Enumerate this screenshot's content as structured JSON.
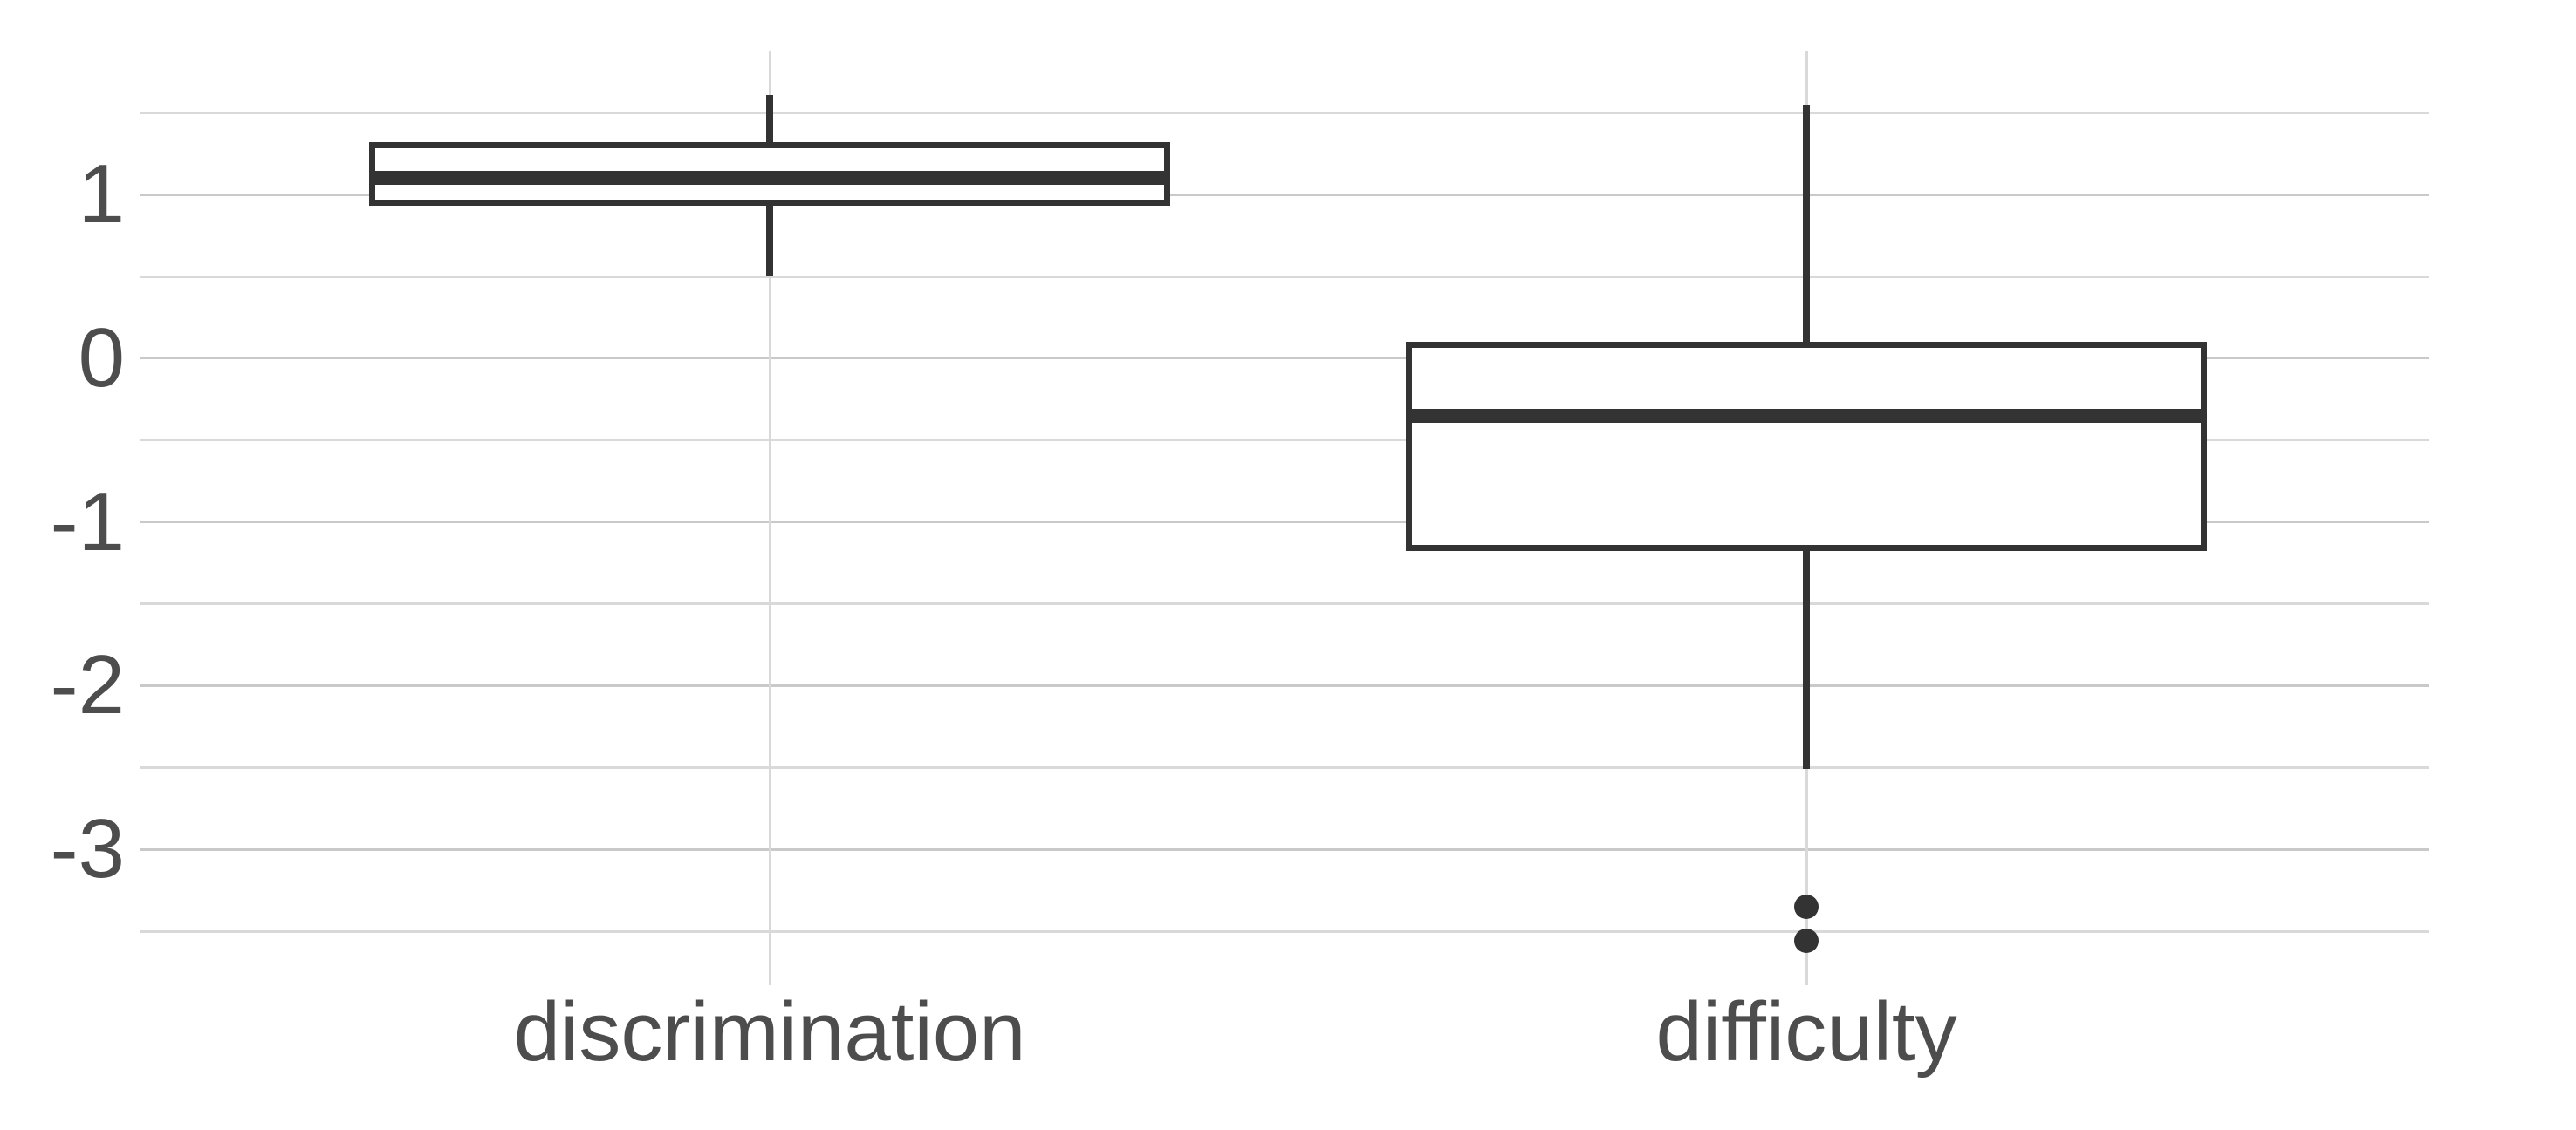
{
  "chart_data": {
    "type": "boxplot",
    "title": "",
    "xlabel": "",
    "ylabel": "",
    "categories": [
      "discrimination",
      "difficulty"
    ],
    "series": [
      {
        "name": "discrimination",
        "whisker_low": 0.5,
        "q1": 0.95,
        "median": 1.1,
        "q3": 1.3,
        "whisker_high": 1.61,
        "outliers": []
      },
      {
        "name": "difficulty",
        "whisker_low": -2.51,
        "q1": -1.16,
        "median": -0.35,
        "q3": 0.08,
        "whisker_high": 1.55,
        "outliers": [
          -3.35,
          -3.56
        ]
      }
    ],
    "yticks": [
      1,
      0,
      -1,
      -2,
      -3
    ],
    "ytick_labels": [
      "1",
      "0",
      "-1",
      "-2",
      "-3"
    ],
    "minor_gridlines": [
      1.5,
      0.5,
      -0.5,
      -1.5,
      -2.5,
      -3.5
    ],
    "ylim": [
      -3.83,
      1.88
    ],
    "grid": true,
    "legend": "none",
    "colors": {
      "background": "#ffffff",
      "axis_text": "#4d4d4d",
      "major_grid": "#c9c9c9",
      "minor_grid": "#d9d9d9",
      "box_stroke": "#333333",
      "box_fill": "#ffffff"
    }
  }
}
